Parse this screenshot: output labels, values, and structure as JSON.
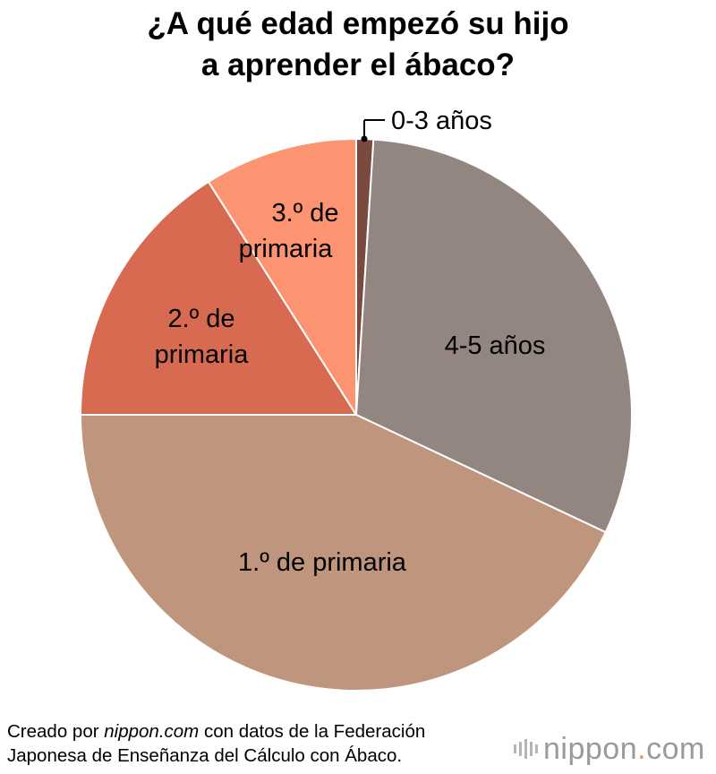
{
  "title_line1": "¿A qué edad empezó su hijo",
  "title_line2": "a aprender el ábaco?",
  "chart_data": {
    "type": "pie",
    "title": "¿A qué edad empezó su hijo a aprender el ábaco?",
    "slices": [
      {
        "label": "0-3 años",
        "value": 1.0,
        "color": "#7a4a40"
      },
      {
        "label": "4-5 años",
        "value": 31.0,
        "color": "#938580"
      },
      {
        "label": "1.º de primaria",
        "value": 43.0,
        "color": "#c0957d"
      },
      {
        "label": "2.º de primaria",
        "value": 16.0,
        "color": "#d96a52"
      },
      {
        "label": "3.º de primaria",
        "value": 9.0,
        "color": "#fc9471"
      }
    ]
  },
  "labels": {
    "slice0": "0-3 años",
    "slice1": "4-5 años",
    "slice2": "1.º de primaria",
    "slice3_line1": "2.º de",
    "slice3_line2": "primaria",
    "slice4_line1": "3.º de",
    "slice4_line2": "primaria"
  },
  "footer": {
    "prefix": "Creado por ",
    "site": "nippon.com",
    "suffix": " con datos de la Federación",
    "line2": "Japonesa de Enseñanza del Cálculo con Ábaco."
  },
  "logo": {
    "name": "nippon",
    "dot": ".",
    "tld": "com"
  }
}
